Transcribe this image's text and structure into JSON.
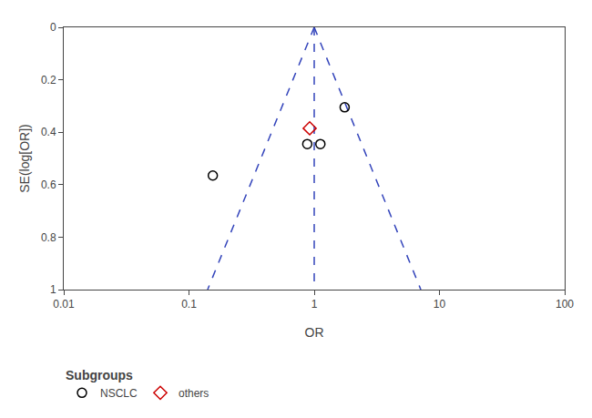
{
  "chart_data": {
    "type": "scatter",
    "x_label": "OR",
    "y_label": "SE(log[OR])",
    "log": "x",
    "xlim": [
      0.01,
      100
    ],
    "xticks": [
      0.01,
      0.1,
      1,
      10,
      100
    ],
    "ylim": [
      1.0,
      0
    ],
    "yticks": [
      0,
      0.2,
      0.4,
      0.6,
      0.8,
      1.0
    ],
    "grid": false,
    "legend": "bottom",
    "legend_title": "Subgroups",
    "series": [
      {
        "type": "line",
        "color": "#3344bb",
        "line_style": "dashed",
        "x": [
          1,
          0.140858
        ],
        "values": [
          0,
          1.0
        ]
      },
      {
        "type": "line",
        "color": "#3344bb",
        "line_style": "dashed",
        "x": [
          1,
          7.099327
        ],
        "values": [
          0,
          1.0
        ]
      },
      {
        "type": "line",
        "color": "#3344bb",
        "line_style": "dashed",
        "x": [
          1,
          1
        ],
        "values": [
          0,
          1.0
        ]
      },
      {
        "name": "NSCLC",
        "type": "scatter",
        "marker": "open_circle",
        "color": "black",
        "x": [
          0.155,
          0.88,
          1.12,
          1.75
        ],
        "values": [
          0.565,
          0.445,
          0.445,
          0.305
        ]
      },
      {
        "name": "others",
        "type": "scatter",
        "marker": "open_diamond",
        "color": "#cc0000",
        "x": [
          0.92
        ],
        "values": [
          0.385
        ]
      }
    ]
  }
}
